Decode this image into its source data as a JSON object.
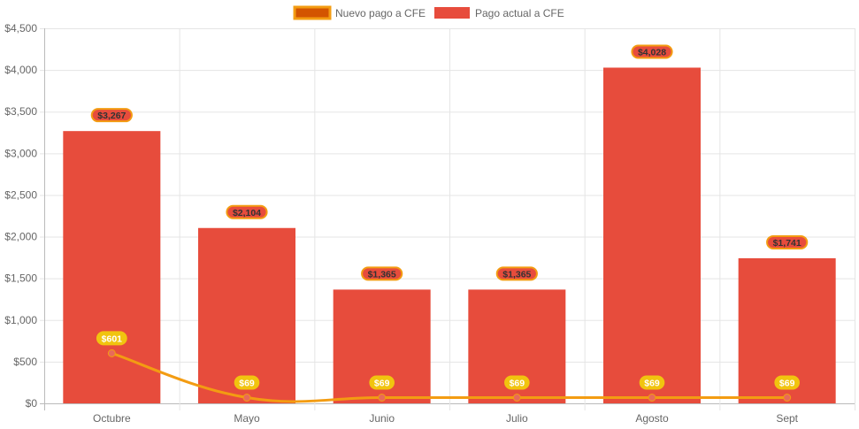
{
  "chart_data": {
    "type": "bar",
    "title": "",
    "xlabel": "",
    "ylabel": "",
    "ylim": [
      0,
      4500
    ],
    "y_ticks": [
      "$0",
      "$500",
      "$1,000",
      "$1,500",
      "$2,000",
      "$2,500",
      "$3,000",
      "$3,500",
      "$4,000",
      "$4,500"
    ],
    "y_tick_values": [
      0,
      500,
      1000,
      1500,
      2000,
      2500,
      3000,
      3500,
      4000,
      4500
    ],
    "grid": true,
    "legend_position": "top-center",
    "categories": [
      "Octubre",
      "Mayo",
      "Junio",
      "Julio",
      "Agosto",
      "Sept"
    ],
    "series": [
      {
        "name": "Nuevo pago a CFE",
        "type": "line",
        "color": "#f39c12",
        "legend_fill": "#d35400",
        "label_bg": "#f1c40f",
        "point_color": "#e86a5a",
        "values": [
          601,
          69,
          69,
          69,
          69,
          69
        ],
        "labels": [
          "$601",
          "$69",
          "$69",
          "$69",
          "$69",
          "$69"
        ]
      },
      {
        "name": "Pago actual a CFE",
        "type": "bar",
        "color": "#e74c3c",
        "label_border": "#f39c12",
        "values": [
          3267,
          2104,
          1365,
          1365,
          4028,
          1741
        ],
        "labels": [
          "$3,267",
          "$2,104",
          "$1,365",
          "$1,365",
          "$4,028",
          "$1,741"
        ]
      }
    ]
  }
}
